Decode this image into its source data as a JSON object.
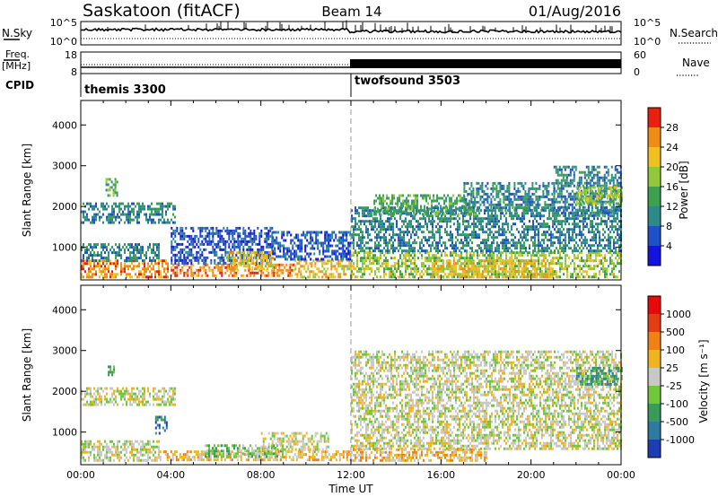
{
  "header": {
    "station": "Saskatoon (fitACF)",
    "beam": "Beam 14",
    "date": "01/Aug/2016"
  },
  "top_panels": {
    "nsky_label": "N.Sky",
    "nsky_ticks": [
      "10^5",
      "10^0"
    ],
    "nsearch_label": "N.Search",
    "nsearch_ticks": [
      "10^5",
      "10^0"
    ],
    "freq_label": "Freq.",
    "freq_unit": "[MHz]",
    "freq_ticks": [
      "18",
      "8"
    ],
    "nave_label": "Nave",
    "nave_ticks": [
      "60",
      "0"
    ],
    "cpid_label": "CPID",
    "cpid_segments": [
      {
        "name": "themis 3300",
        "start_hour": 0
      },
      {
        "name": "twofsound 3503",
        "start_hour": 12
      }
    ]
  },
  "chart_data": [
    {
      "type": "heatmap",
      "title": "",
      "ylabel": "Slant Range [km]",
      "xlabel": "",
      "xlim": [
        0,
        24
      ],
      "ylim": [
        200,
        4600
      ],
      "yticks": [
        "1000",
        "2000",
        "3000",
        "4000"
      ],
      "colorbar": {
        "label": "Power [dB]",
        "ticks": [
          "4",
          "8",
          "12",
          "16",
          "20",
          "24",
          "28"
        ],
        "colors": [
          "#1414e0",
          "#1e50c8",
          "#2e8a8a",
          "#3ca050",
          "#90c838",
          "#f0c020",
          "#f08c14",
          "#e82010"
        ]
      },
      "regions": [
        {
          "t0": 0.0,
          "t1": 3.9,
          "r0": 300,
          "r1": 700,
          "level": 6
        },
        {
          "t0": 0.0,
          "t1": 3.5,
          "r0": 700,
          "r1": 1100,
          "level": 2
        },
        {
          "t0": 0.0,
          "t1": 4.2,
          "r0": 1600,
          "r1": 2100,
          "level": 2
        },
        {
          "t0": 1.1,
          "t1": 1.6,
          "r0": 2300,
          "r1": 2700,
          "level": 3
        },
        {
          "t0": 4.0,
          "t1": 9.5,
          "r0": 300,
          "r1": 600,
          "level": 6
        },
        {
          "t0": 4.0,
          "t1": 8.5,
          "r0": 600,
          "r1": 1500,
          "level": 1
        },
        {
          "t0": 6.5,
          "t1": 8.5,
          "r0": 500,
          "r1": 900,
          "level": 5
        },
        {
          "t0": 9.5,
          "t1": 12.0,
          "r0": 300,
          "r1": 700,
          "level": 5
        },
        {
          "t0": 8.5,
          "t1": 12.0,
          "r0": 700,
          "r1": 1400,
          "level": 1
        },
        {
          "t0": 12.0,
          "t1": 24.0,
          "r0": 300,
          "r1": 900,
          "level": 4
        },
        {
          "t0": 12.0,
          "t1": 24.0,
          "r0": 900,
          "r1": 2000,
          "level": 2
        },
        {
          "t0": 13.0,
          "t1": 17.5,
          "r0": 1800,
          "r1": 2300,
          "level": 3
        },
        {
          "t0": 17.0,
          "t1": 21.0,
          "r0": 1900,
          "r1": 2600,
          "level": 2
        },
        {
          "t0": 21.0,
          "t1": 24.0,
          "r0": 1800,
          "r1": 3000,
          "level": 2
        },
        {
          "t0": 22.0,
          "t1": 24.0,
          "r0": 2100,
          "r1": 2500,
          "level": 4
        },
        {
          "t0": 15.5,
          "t1": 21.0,
          "r0": 300,
          "r1": 700,
          "level": 5
        }
      ]
    },
    {
      "type": "heatmap",
      "title": "",
      "ylabel": "Slant Range [km]",
      "xlabel": "Time UT",
      "xlim": [
        0,
        24
      ],
      "ylim": [
        200,
        4600
      ],
      "xticks": [
        "00:00",
        "04:00",
        "08:00",
        "12:00",
        "16:00",
        "20:00",
        "00:00"
      ],
      "yticks": [
        "1000",
        "2000",
        "3000",
        "4000"
      ],
      "colorbar": {
        "label": "Velocity [m s⁻¹]",
        "ticks": [
          "1000",
          "500",
          "100",
          "25",
          "-25",
          "-100",
          "-500",
          "-1000"
        ],
        "colors": [
          "#1e3cb4",
          "#2e7aa0",
          "#3a9a5a",
          "#6ec83a",
          "#c8c8c8",
          "#f0b41e",
          "#f08214",
          "#e63c14",
          "#e60a0a"
        ]
      },
      "regions": [
        {
          "t0": 0.0,
          "t1": 3.5,
          "r0": 300,
          "r1": 800,
          "level": 4
        },
        {
          "t0": 0.0,
          "t1": 4.2,
          "r0": 1700,
          "r1": 2100,
          "level": 4
        },
        {
          "t0": 1.2,
          "t1": 1.5,
          "r0": 2400,
          "r1": 2700,
          "level": 2
        },
        {
          "t0": 3.3,
          "t1": 3.8,
          "r0": 1000,
          "r1": 1400,
          "level": 1
        },
        {
          "t0": 3.5,
          "t1": 12.0,
          "r0": 300,
          "r1": 550,
          "level": 5
        },
        {
          "t0": 5.5,
          "t1": 9.0,
          "r0": 400,
          "r1": 700,
          "level": 3
        },
        {
          "t0": 8.0,
          "t1": 11.0,
          "r0": 550,
          "r1": 1000,
          "level": 4
        },
        {
          "t0": 12.0,
          "t1": 24.0,
          "r0": 600,
          "r1": 3000,
          "level": 4
        },
        {
          "t0": 12.0,
          "t1": 18.0,
          "r0": 300,
          "r1": 600,
          "level": 5
        },
        {
          "t0": 22.0,
          "t1": 24.0,
          "r0": 2200,
          "r1": 2600,
          "level": 2
        }
      ]
    }
  ]
}
